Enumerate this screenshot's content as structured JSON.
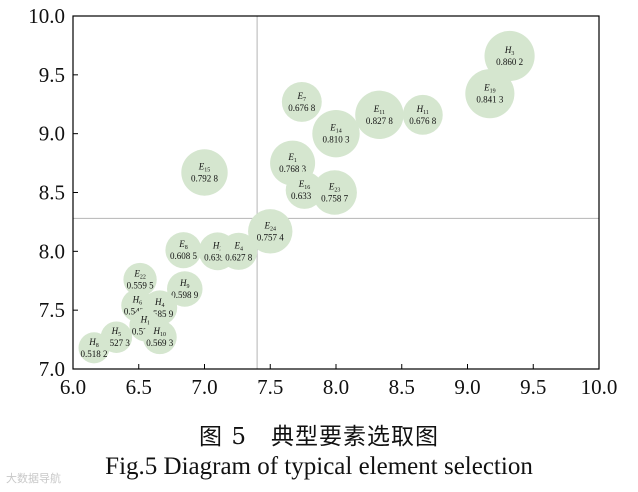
{
  "chart_data": {
    "type": "scatter",
    "title": "",
    "xlabel": "",
    "ylabel": "",
    "xlim": [
      6.0,
      10.0
    ],
    "ylim": [
      7.0,
      10.0
    ],
    "xticks": [
      "6.0",
      "6.5",
      "7.0",
      "7.5",
      "8.0",
      "8.5",
      "9.0",
      "9.5",
      "10.0"
    ],
    "yticks": [
      "7.0",
      "7.5",
      "8.0",
      "8.5",
      "9.0",
      "9.5",
      "10.0"
    ],
    "reference_lines": {
      "x": 7.4,
      "y": 8.28
    },
    "bubble_color": "#d5e6cf",
    "points": [
      {
        "sym": "H",
        "sub": "3",
        "value": "0.860 2",
        "x": 9.32,
        "y": 9.66,
        "w": 0.8602
      },
      {
        "sym": "E",
        "sub": "19",
        "value": "0.841 3",
        "x": 9.17,
        "y": 9.34,
        "w": 0.8413
      },
      {
        "sym": "E",
        "sub": "11",
        "value": "0.827 8",
        "x": 8.33,
        "y": 9.16,
        "w": 0.8278
      },
      {
        "sym": "H",
        "sub": "11",
        "value": "0.676 8",
        "x": 8.66,
        "y": 9.16,
        "w": 0.6768
      },
      {
        "sym": "E",
        "sub": "7",
        "value": "0.676 8",
        "x": 7.74,
        "y": 9.27,
        "w": 0.6768
      },
      {
        "sym": "E",
        "sub": "14",
        "value": "0.810 3",
        "x": 8.0,
        "y": 9.0,
        "w": 0.8103
      },
      {
        "sym": "E",
        "sub": "1",
        "value": "0.768 3",
        "x": 7.67,
        "y": 8.75,
        "w": 0.7683
      },
      {
        "sym": "E",
        "sub": "15",
        "value": "0.792 8",
        "x": 7.0,
        "y": 8.67,
        "w": 0.7928
      },
      {
        "sym": "E",
        "sub": "16",
        "value": "0.633 2",
        "x": 7.76,
        "y": 8.52,
        "w": 0.6332
      },
      {
        "sym": "E",
        "sub": "23",
        "value": "0.758 7",
        "x": 7.99,
        "y": 8.5,
        "w": 0.7587
      },
      {
        "sym": "E",
        "sub": "24",
        "value": "0.757 4",
        "x": 7.5,
        "y": 8.17,
        "w": 0.7574
      },
      {
        "sym": "E",
        "sub": "8",
        "value": "0.608 5",
        "x": 6.84,
        "y": 8.01,
        "w": 0.6085
      },
      {
        "sym": "H",
        "sub": "2",
        "value": "0.639 6",
        "x": 7.1,
        "y": 8.0,
        "w": 0.6396
      },
      {
        "sym": "E",
        "sub": "4",
        "value": "0.627 8",
        "x": 7.26,
        "y": 8.0,
        "w": 0.6278
      },
      {
        "sym": "E",
        "sub": "22",
        "value": "0.559 5",
        "x": 6.51,
        "y": 7.76,
        "w": 0.5595
      },
      {
        "sym": "H",
        "sub": "9",
        "value": "0.598 9",
        "x": 6.85,
        "y": 7.68,
        "w": 0.5989
      },
      {
        "sym": "H",
        "sub": "6",
        "value": "0.542 2",
        "x": 6.49,
        "y": 7.54,
        "w": 0.5422
      },
      {
        "sym": "H",
        "sub": "4",
        "value": "0.585 9",
        "x": 6.66,
        "y": 7.52,
        "w": 0.5859
      },
      {
        "sym": "H",
        "sub": "1",
        "value": "0.534 4",
        "x": 6.55,
        "y": 7.37,
        "w": 0.5344
      },
      {
        "sym": "H",
        "sub": "5",
        "value": "0.527 3",
        "x": 6.33,
        "y": 7.27,
        "w": 0.5273
      },
      {
        "sym": "H",
        "sub": "10",
        "value": "0.569 3",
        "x": 6.66,
        "y": 7.27,
        "w": 0.5693
      },
      {
        "sym": "H",
        "sub": "8",
        "value": "0.518 2",
        "x": 6.16,
        "y": 7.18,
        "w": 0.5182
      }
    ]
  },
  "caption": {
    "chinese": "图 5　典型要素选取图",
    "english": "Fig.5 Diagram of typical element selection"
  },
  "watermark": "大数据导航"
}
